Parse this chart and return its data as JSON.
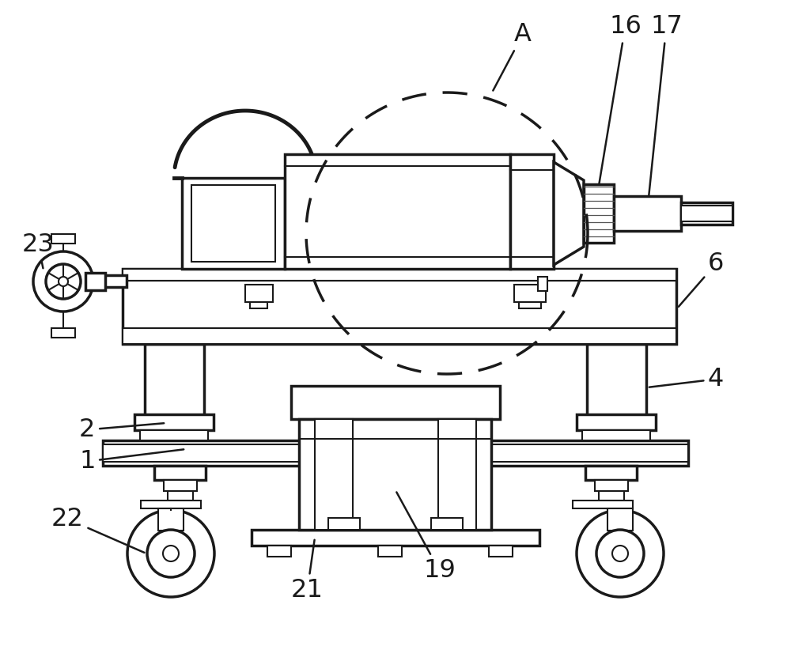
{
  "bg_color": "#ffffff",
  "line_color": "#1a1a1a",
  "lw": 2.5,
  "lw_thin": 1.5,
  "lw_thick": 3.0
}
